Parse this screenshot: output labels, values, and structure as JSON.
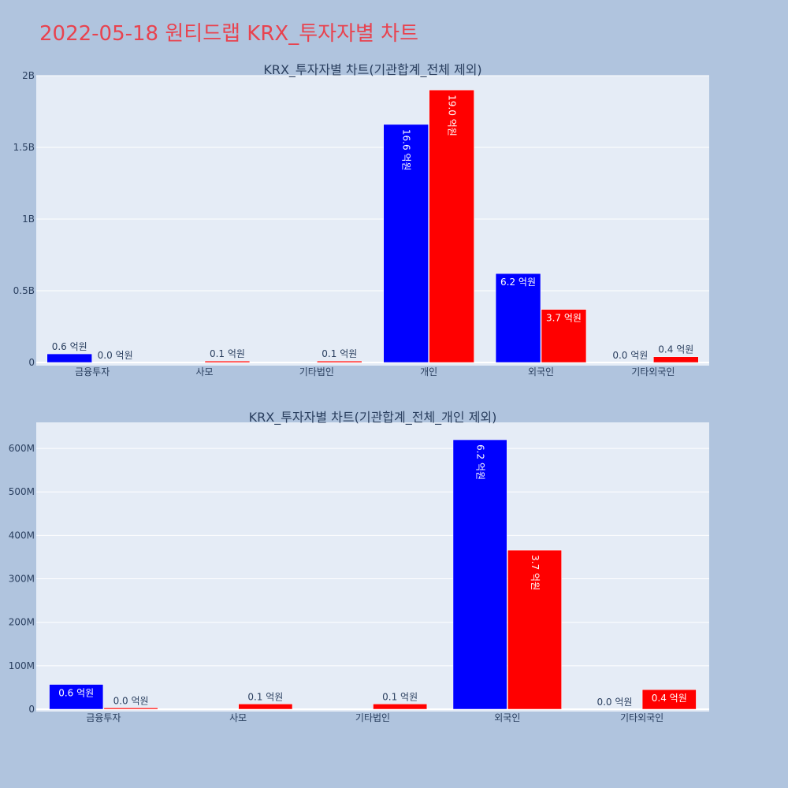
{
  "page_title": "2022-05-18 원티드랩 KRX_투자자별 차트",
  "colors": {
    "background": "#b0c4de",
    "plot_bg": "#e5ecf6",
    "title": "#e8434f",
    "buy": "#0000ff",
    "sell": "#ff0000"
  },
  "chart_data": [
    {
      "type": "bar",
      "title": "KRX_투자자별 차트(기관합계_전체 제외)",
      "categories": [
        "금융투자",
        "사모",
        "기타법인",
        "개인",
        "외국인",
        "기타외국인"
      ],
      "ylim": [
        0,
        2000000000
      ],
      "yticks": [
        0,
        500000000,
        1000000000,
        1500000000,
        2000000000
      ],
      "ytick_labels": [
        "0",
        "0.5B",
        "1B",
        "1.5B",
        "2B"
      ],
      "grid": true,
      "series": [
        {
          "color": "#0000ff",
          "values": [
            60000000,
            0,
            0,
            1660000000,
            620000000,
            0
          ],
          "labels": [
            "0.6 억원",
            "",
            "",
            "16.6 억원",
            "6.2 억원",
            "0.0 억원"
          ]
        },
        {
          "color": "#ff0000",
          "values": [
            0,
            10000000,
            10000000,
            1900000000,
            370000000,
            40000000
          ],
          "labels": [
            "0.0 억원",
            "0.1 억원",
            "0.1 억원",
            "19.0 억원",
            "3.7 억원",
            "0.4 억원"
          ]
        }
      ]
    },
    {
      "type": "bar",
      "title": "KRX_투자자별 차트(기관합계_전체_개인 제외)",
      "categories": [
        "금융투자",
        "사모",
        "기타법인",
        "외국인",
        "기타외국인"
      ],
      "ylim": [
        0,
        660000000
      ],
      "yticks": [
        0,
        100000000,
        200000000,
        300000000,
        400000000,
        500000000,
        600000000
      ],
      "ytick_labels": [
        "0",
        "100M",
        "200M",
        "300M",
        "400M",
        "500M",
        "600M"
      ],
      "grid": true,
      "series": [
        {
          "color": "#0000ff",
          "values": [
            57000000,
            0,
            0,
            620000000,
            0
          ],
          "labels": [
            "0.6 억원",
            "",
            "",
            "6.2 억원",
            "0.0 억원"
          ]
        },
        {
          "color": "#ff0000",
          "values": [
            3000000,
            12000000,
            12000000,
            366000000,
            45000000
          ],
          "labels": [
            "0.0 억원",
            "0.1 억원",
            "0.1 억원",
            "3.7 억원",
            "0.4 억원"
          ]
        }
      ]
    }
  ]
}
